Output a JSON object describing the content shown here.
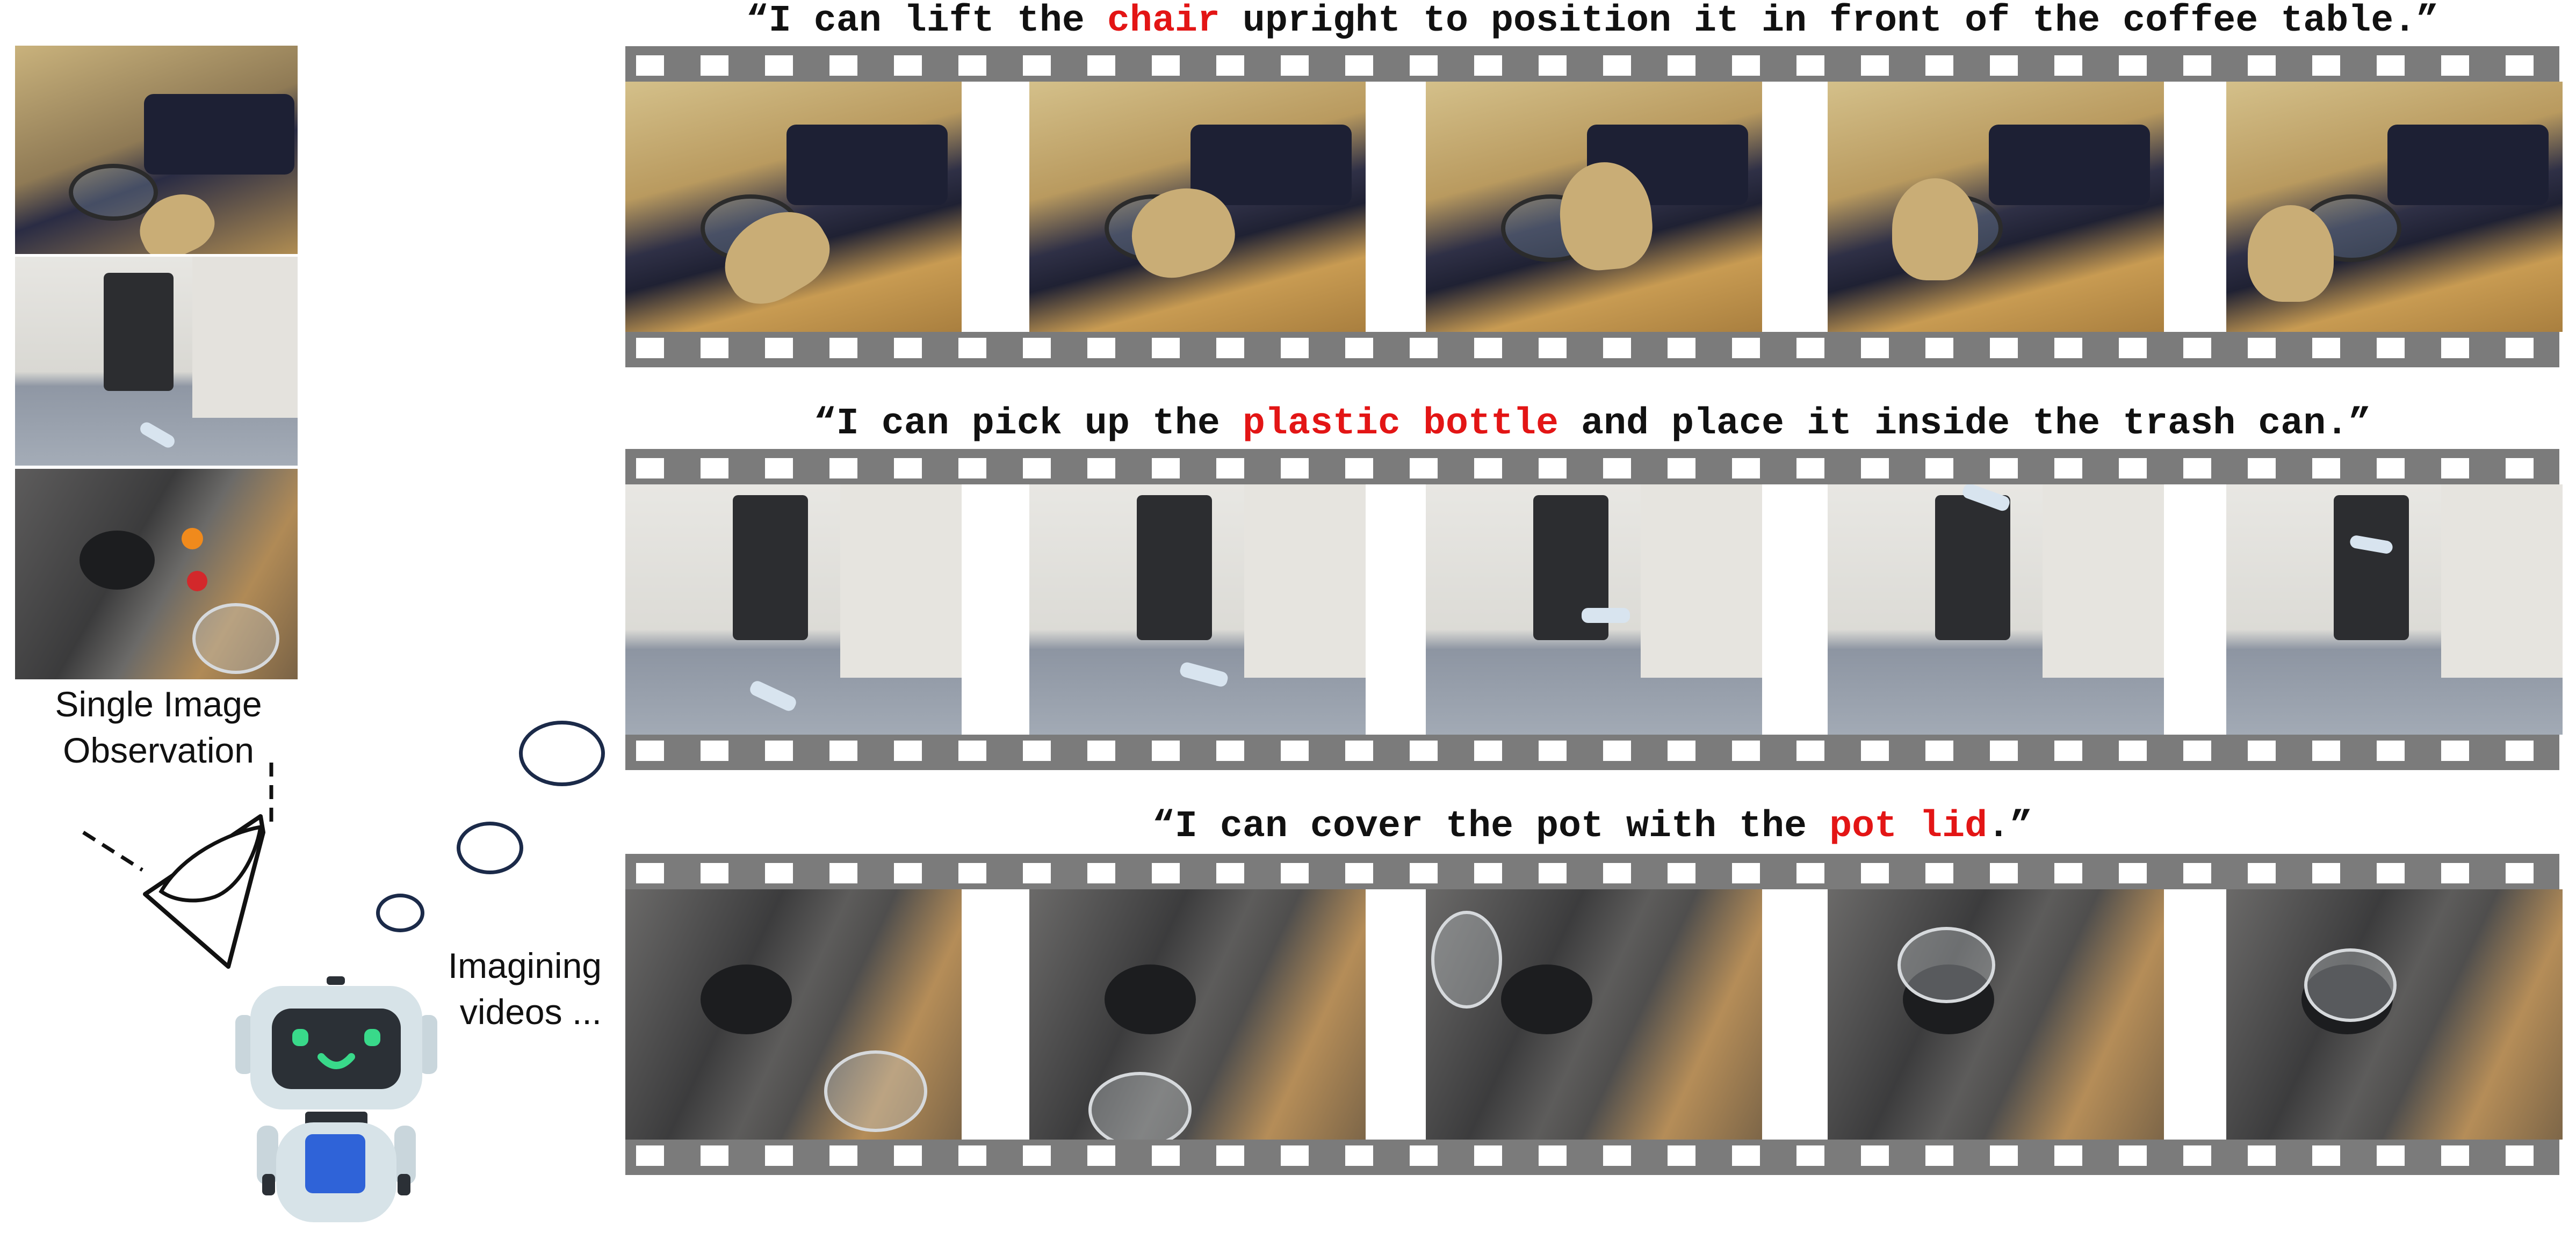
{
  "observation_caption": [
    "Single Image",
    "Observation"
  ],
  "imagine_caption": [
    "Imagining",
    "videos ..."
  ],
  "prompts": [
    {
      "before": "“I can lift the ",
      "highlight": "chair",
      "after": " upright to position it in front of the coffee table.”"
    },
    {
      "before": "“I can pick up the ",
      "highlight": "plastic bottle",
      "after": " and place it inside the trash can.”"
    },
    {
      "before": "“I can cover the pot with the ",
      "highlight": "pot lid",
      "after": ".”"
    }
  ],
  "colors": {
    "highlight": "#e31515",
    "film": "#7b7b7b",
    "robot_body": "#d7e3e8",
    "robot_screen": "#2b3036",
    "robot_eyes": "#39d98a",
    "robot_chest": "#2f63d8",
    "bubble_stroke": "#1b2a49"
  },
  "icons": {
    "robot": "robot-icon",
    "eye": "eye-icon",
    "thought": "thought-bubble-icon"
  }
}
